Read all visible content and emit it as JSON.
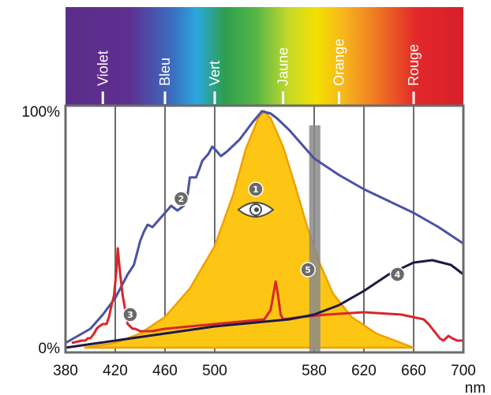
{
  "chart_data": {
    "type": "line",
    "xlabel": "",
    "x_unit": "nm",
    "ylabel": "",
    "xlim": [
      380,
      700
    ],
    "ylim": [
      0,
      100
    ],
    "x_ticks": [
      380,
      420,
      460,
      500,
      580,
      620,
      660,
      700
    ],
    "y_ticks": [
      {
        "value": 100,
        "label": "100%"
      },
      {
        "value": 0,
        "label": "0%"
      }
    ],
    "grid": true,
    "color_bands": [
      {
        "label": "Violet",
        "x": 410
      },
      {
        "label": "Bleu",
        "x": 460
      },
      {
        "label": "Vert",
        "x": 500
      },
      {
        "label": "Jaune",
        "x": 555
      },
      {
        "label": "Orange",
        "x": 600
      },
      {
        "label": "Rouge",
        "x": 660
      }
    ],
    "shaded_band": {
      "marker": "5",
      "x": [
        576,
        585
      ],
      "color": "#8a8a8a"
    },
    "series": [
      {
        "marker": "1",
        "kind": "area",
        "color": "#fdc614",
        "edge_color": "#f0a000",
        "x": [
          395,
          420,
          440,
          460,
          480,
          500,
          515,
          525,
          535,
          540,
          545,
          555,
          565,
          575,
          585,
          595,
          610,
          630,
          650,
          660
        ],
        "values": [
          0,
          2,
          6,
          13,
          25,
          43,
          65,
          84,
          97,
          100,
          97,
          85,
          68,
          50,
          35,
          23,
          13,
          6,
          2,
          0
        ]
      },
      {
        "marker": "2",
        "kind": "line",
        "color": "#4a52a2",
        "x": [
          380,
          400,
          410,
          420,
          425,
          430,
          435,
          440,
          443,
          446,
          450,
          455,
          460,
          465,
          470,
          475,
          478,
          480,
          485,
          488,
          490,
          495,
          498,
          500,
          505,
          510,
          520,
          530,
          538,
          545,
          550,
          560,
          570,
          580,
          600,
          620,
          640,
          660,
          680,
          700
        ],
        "values": [
          2,
          8,
          14,
          21,
          26,
          31,
          35,
          45,
          49,
          52,
          51,
          54,
          57,
          60,
          58,
          60,
          64,
          72,
          72,
          76,
          79,
          82,
          85,
          84,
          81,
          83,
          88,
          95,
          100,
          99,
          97,
          92,
          86,
          80,
          73,
          67,
          62,
          57,
          51,
          44
        ]
      },
      {
        "marker": "3",
        "kind": "line",
        "color": "#d8262c",
        "x": [
          385,
          393,
          396,
          398,
          400,
          403,
          405,
          407,
          410,
          413,
          415,
          417,
          419,
          421,
          422,
          424,
          426,
          428,
          430,
          432,
          434,
          436,
          440,
          450,
          460,
          480,
          500,
          520,
          540,
          545,
          547,
          549,
          551,
          553,
          555,
          570,
          590,
          620,
          650,
          668,
          672,
          675,
          678,
          681,
          684,
          688,
          691,
          695,
          700
        ],
        "values": [
          2,
          3,
          3,
          4,
          4,
          6,
          8,
          9,
          10,
          10,
          13,
          18,
          22,
          33,
          42,
          31,
          22,
          16,
          10,
          9,
          8,
          8,
          7,
          7,
          8,
          9,
          10,
          11,
          12,
          16,
          22,
          28,
          22,
          14,
          12,
          13,
          14,
          15,
          14,
          12,
          10,
          8,
          6,
          4,
          3,
          5,
          4,
          3,
          3
        ]
      },
      {
        "marker": "4",
        "kind": "line",
        "color": "#1e1a45",
        "x": [
          380,
          420,
          460,
          500,
          540,
          560,
          580,
          600,
          620,
          640,
          660,
          675,
          690,
          700
        ],
        "values": [
          0,
          3,
          6,
          9,
          11,
          12,
          14,
          18,
          24,
          31,
          36,
          37,
          35,
          31
        ]
      }
    ],
    "markers": [
      {
        "label": "1",
        "x": 533,
        "y": 67,
        "icon": "eye-icon"
      },
      {
        "label": "2",
        "x": 473,
        "y": 63
      },
      {
        "label": "3",
        "x": 432,
        "y": 14
      },
      {
        "label": "4",
        "x": 647,
        "y": 31
      },
      {
        "label": "5",
        "x": 575,
        "y": 33
      }
    ]
  }
}
